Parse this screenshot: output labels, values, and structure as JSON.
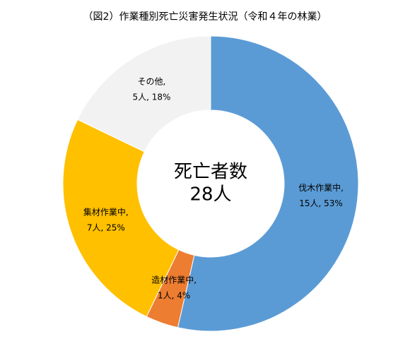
{
  "chart_data": {
    "type": "donut",
    "title": "（図2）作業種別死亡災害発生状況（令和４年の林業）",
    "center_title": "死亡者数",
    "center_value_label": "28人",
    "categories": [
      "伐木作業中,",
      "造材作業中,",
      "集材作業中,",
      "その他,"
    ],
    "values": [
      15,
      1,
      7,
      5
    ],
    "value_labels": [
      "15人, 53%",
      "1人, 4%",
      "7人, 25%",
      "5人, 18%"
    ],
    "colors": [
      "#5b9bd5",
      "#ed7d31",
      "#ffc000",
      "#f2f2f2"
    ]
  }
}
